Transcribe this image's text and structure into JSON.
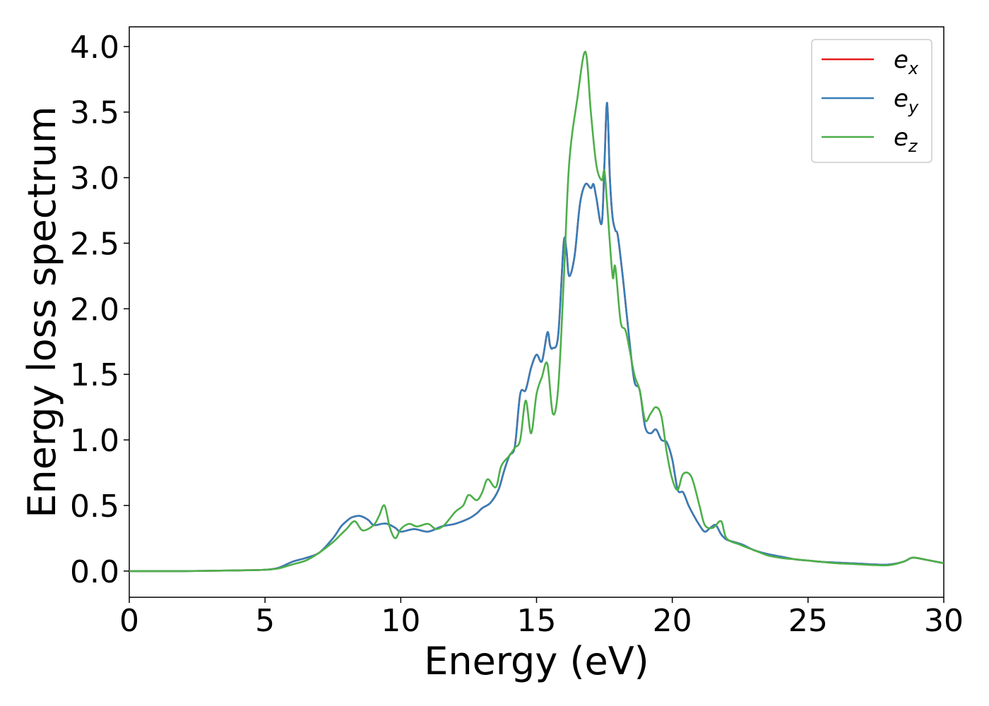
{
  "chart_data": {
    "type": "line",
    "title": "",
    "xlabel": "Energy (eV)",
    "ylabel": "Energy loss spectrum",
    "xlim": [
      0,
      30
    ],
    "ylim": [
      -0.2,
      4.15
    ],
    "xticks": [
      0,
      5,
      10,
      15,
      20,
      25,
      30
    ],
    "xtick_labels": [
      "0",
      "5",
      "10",
      "15",
      "20",
      "25",
      "30"
    ],
    "yticks": [
      0.0,
      0.5,
      1.0,
      1.5,
      2.0,
      2.5,
      3.0,
      3.5,
      4.0
    ],
    "ytick_labels": [
      "0.0",
      "0.5",
      "1.0",
      "1.5",
      "2.0",
      "2.5",
      "3.0",
      "3.5",
      "4.0"
    ],
    "grid": false,
    "legend_position": "top-right",
    "series": [
      {
        "name": "e_x",
        "legend_base": "e",
        "legend_sub": "x",
        "color": "#e41a1c",
        "x": [
          0,
          2,
          4,
          5,
          5.5,
          6,
          6.5,
          7,
          7.5,
          7.8,
          8,
          8.2,
          8.5,
          8.8,
          9,
          9.3,
          9.5,
          9.8,
          10,
          10.5,
          11,
          11.5,
          12,
          12.5,
          12.8,
          13,
          13.3,
          13.6,
          13.8,
          14,
          14.2,
          14.4,
          14.6,
          14.8,
          15,
          15.2,
          15.4,
          15.5,
          15.6,
          15.8,
          16,
          16.1,
          16.2,
          16.4,
          16.6,
          16.8,
          17,
          17.1,
          17.2,
          17.4,
          17.5,
          17.6,
          17.7,
          17.8,
          17.9,
          18,
          18.2,
          18.4,
          18.6,
          18.8,
          19,
          19.2,
          19.4,
          19.6,
          19.8,
          20,
          20.2,
          20.4,
          20.6,
          20.8,
          21,
          21.2,
          21.4,
          21.6,
          21.8,
          22,
          22.3,
          22.6,
          23,
          23.5,
          24,
          24.5,
          25,
          25.5,
          26,
          26.5,
          27,
          27.5,
          28,
          28.5,
          28.8,
          29,
          29.5,
          30
        ],
        "values": [
          0.0,
          0.0,
          0.005,
          0.01,
          0.025,
          0.07,
          0.1,
          0.14,
          0.25,
          0.34,
          0.38,
          0.41,
          0.42,
          0.39,
          0.35,
          0.36,
          0.36,
          0.33,
          0.3,
          0.32,
          0.3,
          0.34,
          0.36,
          0.4,
          0.44,
          0.48,
          0.52,
          0.62,
          0.76,
          0.88,
          0.95,
          1.35,
          1.38,
          1.55,
          1.65,
          1.6,
          1.82,
          1.72,
          1.7,
          1.8,
          2.5,
          2.45,
          2.25,
          2.4,
          2.8,
          2.95,
          2.92,
          2.95,
          2.85,
          2.65,
          3.1,
          3.57,
          3.0,
          2.7,
          2.6,
          2.55,
          2.2,
          1.8,
          1.45,
          1.38,
          1.1,
          1.05,
          1.08,
          1.0,
          0.98,
          0.85,
          0.62,
          0.6,
          0.5,
          0.42,
          0.35,
          0.3,
          0.33,
          0.35,
          0.28,
          0.24,
          0.22,
          0.2,
          0.16,
          0.13,
          0.11,
          0.09,
          0.08,
          0.07,
          0.065,
          0.06,
          0.055,
          0.05,
          0.05,
          0.07,
          0.1,
          0.1,
          0.08,
          0.06
        ]
      },
      {
        "name": "e_y",
        "legend_base": "e",
        "legend_sub": "y",
        "color": "#377eb8",
        "x": [
          0,
          2,
          4,
          5,
          5.5,
          6,
          6.5,
          7,
          7.5,
          7.8,
          8,
          8.2,
          8.5,
          8.8,
          9,
          9.3,
          9.5,
          9.8,
          10,
          10.5,
          11,
          11.5,
          12,
          12.5,
          12.8,
          13,
          13.3,
          13.6,
          13.8,
          14,
          14.2,
          14.4,
          14.6,
          14.8,
          15,
          15.2,
          15.4,
          15.5,
          15.6,
          15.8,
          16,
          16.1,
          16.2,
          16.4,
          16.6,
          16.8,
          17,
          17.1,
          17.2,
          17.4,
          17.5,
          17.6,
          17.7,
          17.8,
          17.9,
          18,
          18.2,
          18.4,
          18.6,
          18.8,
          19,
          19.2,
          19.4,
          19.6,
          19.8,
          20,
          20.2,
          20.4,
          20.6,
          20.8,
          21,
          21.2,
          21.4,
          21.6,
          21.8,
          22,
          22.3,
          22.6,
          23,
          23.5,
          24,
          24.5,
          25,
          25.5,
          26,
          26.5,
          27,
          27.5,
          28,
          28.5,
          28.8,
          29,
          29.5,
          30
        ],
        "values": [
          0.0,
          0.0,
          0.005,
          0.01,
          0.025,
          0.07,
          0.1,
          0.14,
          0.25,
          0.34,
          0.38,
          0.41,
          0.42,
          0.39,
          0.35,
          0.36,
          0.36,
          0.33,
          0.3,
          0.32,
          0.3,
          0.34,
          0.36,
          0.4,
          0.44,
          0.48,
          0.52,
          0.62,
          0.76,
          0.88,
          0.95,
          1.35,
          1.38,
          1.55,
          1.65,
          1.6,
          1.82,
          1.72,
          1.7,
          1.8,
          2.5,
          2.45,
          2.25,
          2.4,
          2.8,
          2.95,
          2.92,
          2.95,
          2.85,
          2.65,
          3.1,
          3.57,
          3.0,
          2.7,
          2.6,
          2.55,
          2.2,
          1.8,
          1.45,
          1.38,
          1.1,
          1.05,
          1.08,
          1.0,
          0.98,
          0.85,
          0.62,
          0.6,
          0.5,
          0.42,
          0.35,
          0.3,
          0.33,
          0.35,
          0.28,
          0.24,
          0.22,
          0.2,
          0.16,
          0.13,
          0.11,
          0.09,
          0.08,
          0.07,
          0.065,
          0.06,
          0.055,
          0.05,
          0.05,
          0.07,
          0.1,
          0.1,
          0.08,
          0.06
        ]
      },
      {
        "name": "e_z",
        "legend_base": "e",
        "legend_sub": "z",
        "color": "#4daf4a",
        "x": [
          0,
          2,
          4,
          5,
          5.5,
          6,
          6.5,
          7,
          7.5,
          7.8,
          8,
          8.3,
          8.6,
          9,
          9.2,
          9.4,
          9.6,
          9.8,
          10,
          10.3,
          10.6,
          11,
          11.3,
          11.6,
          12,
          12.3,
          12.5,
          12.8,
          13,
          13.2,
          13.5,
          13.7,
          14,
          14.2,
          14.4,
          14.6,
          14.8,
          15,
          15.2,
          15.4,
          15.6,
          15.8,
          16,
          16.2,
          16.5,
          16.8,
          17,
          17.2,
          17.4,
          17.5,
          17.6,
          17.8,
          17.9,
          18.1,
          18.3,
          18.6,
          18.8,
          19,
          19.2,
          19.4,
          19.6,
          19.8,
          20,
          20.2,
          20.4,
          20.7,
          21,
          21.2,
          21.5,
          21.8,
          22,
          22.5,
          23,
          23.5,
          24,
          24.5,
          25,
          25.5,
          26,
          26.5,
          27,
          27.5,
          28,
          28.5,
          28.8,
          29,
          29.5,
          30
        ],
        "values": [
          0.0,
          0.0,
          0.005,
          0.01,
          0.02,
          0.05,
          0.08,
          0.14,
          0.22,
          0.28,
          0.32,
          0.38,
          0.31,
          0.35,
          0.42,
          0.5,
          0.33,
          0.25,
          0.32,
          0.36,
          0.34,
          0.36,
          0.32,
          0.35,
          0.45,
          0.5,
          0.58,
          0.54,
          0.6,
          0.7,
          0.64,
          0.8,
          0.88,
          0.94,
          1.0,
          1.3,
          1.05,
          1.35,
          1.48,
          1.58,
          1.2,
          1.4,
          2.2,
          3.1,
          3.6,
          3.96,
          3.5,
          3.1,
          2.98,
          3.05,
          2.8,
          2.25,
          2.32,
          1.9,
          1.82,
          1.5,
          1.38,
          1.15,
          1.2,
          1.25,
          1.18,
          0.9,
          0.7,
          0.62,
          0.74,
          0.72,
          0.5,
          0.35,
          0.33,
          0.38,
          0.25,
          0.2,
          0.16,
          0.12,
          0.1,
          0.09,
          0.08,
          0.07,
          0.06,
          0.055,
          0.05,
          0.045,
          0.045,
          0.07,
          0.1,
          0.1,
          0.08,
          0.06
        ]
      }
    ]
  }
}
